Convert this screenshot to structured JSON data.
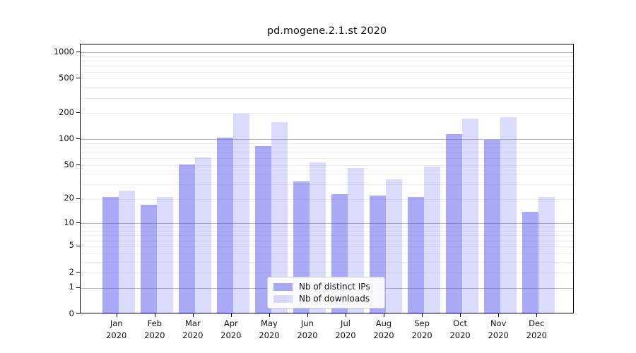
{
  "title": "pd.mogene.2.1.st 2020",
  "chart_data": {
    "type": "bar",
    "title": "pd.mogene.2.1.st 2020",
    "xlabel": "",
    "ylabel": "",
    "yscale": "log1p",
    "ylim": [
      0,
      1234
    ],
    "yticks": [
      0,
      1,
      2,
      5,
      10,
      20,
      50,
      100,
      200,
      500,
      1000
    ],
    "grid": {
      "major_at": [
        1,
        10,
        100,
        1000
      ],
      "minor_at": [
        2,
        3,
        4,
        5,
        6,
        7,
        8,
        9,
        20,
        30,
        40,
        50,
        60,
        70,
        80,
        90,
        200,
        300,
        400,
        500,
        600,
        700,
        800,
        900
      ],
      "major_color": "#b3b3b3",
      "minor_color": "#ececec"
    },
    "categories": [
      "Jan",
      "Feb",
      "Mar",
      "Apr",
      "May",
      "Jun",
      "Jul",
      "Aug",
      "Sep",
      "Oct",
      "Nov",
      "Dec"
    ],
    "year": "2020",
    "series": [
      {
        "name": "Nb of distinct IPs",
        "color": "rgba(90,90,235,0.52)",
        "values": [
          21,
          17,
          51,
          105,
          83,
          32,
          23,
          22,
          21,
          115,
          99,
          14
        ]
      },
      {
        "name": "Nb of downloads",
        "color": "rgba(90,90,235,0.22)",
        "values": [
          25,
          21,
          62,
          198,
          157,
          54,
          46,
          34,
          48,
          175,
          180,
          21
        ]
      }
    ],
    "legend": {
      "position": "bottom-center"
    }
  }
}
